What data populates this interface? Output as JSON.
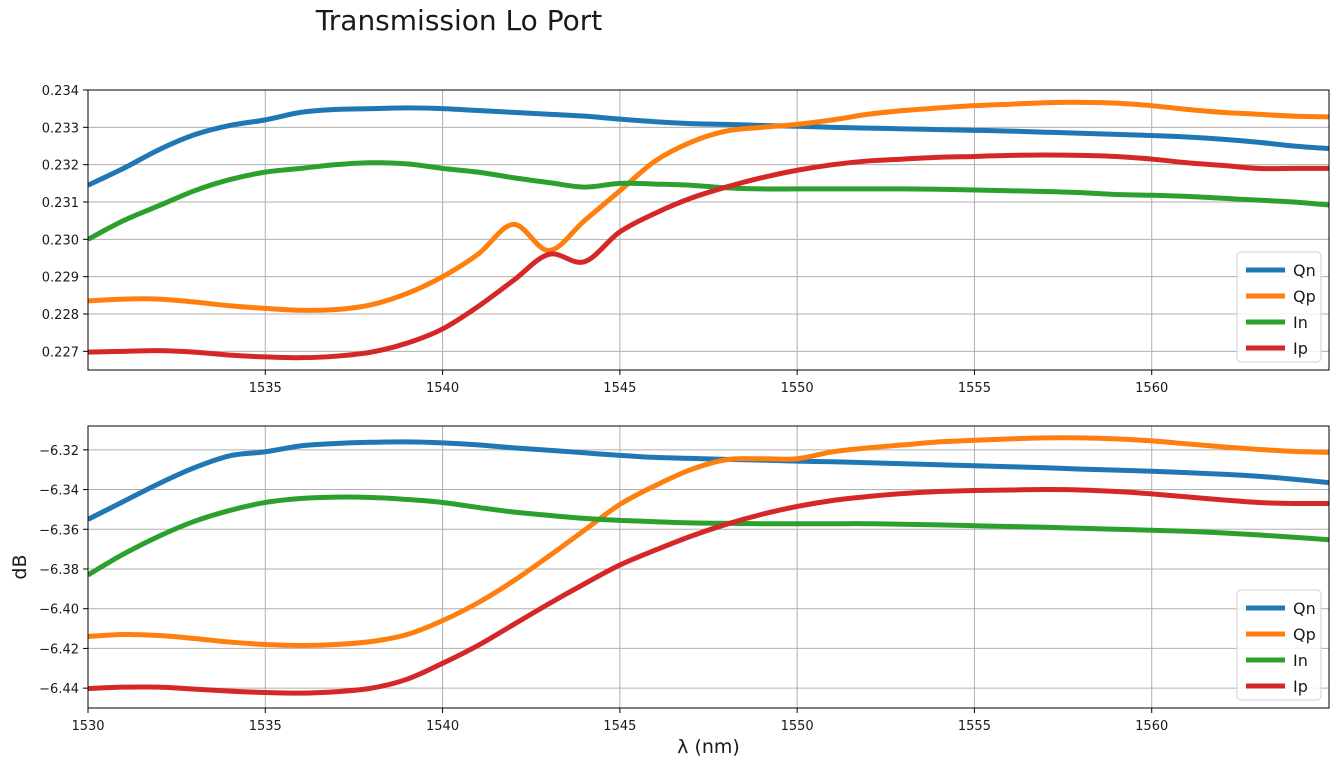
{
  "chart_data": {
    "title": "Transmission Lo Port",
    "panels": [
      {
        "type": "line",
        "ylabel": "",
        "xlabel": "",
        "xlim": [
          1530,
          1565
        ],
        "ylim": [
          0.2265,
          0.234
        ],
        "xticks": [
          1535,
          1540,
          1545,
          1550,
          1555,
          1560
        ],
        "yticks": [
          0.227,
          0.228,
          0.229,
          0.23,
          0.231,
          0.232,
          0.233,
          0.234
        ],
        "ytick_labels": [
          "0.227",
          "0.228",
          "0.229",
          "0.230",
          "0.231",
          "0.232",
          "0.233",
          "0.234"
        ],
        "grid": true,
        "legend": "lower-right",
        "x": [
          1530,
          1531,
          1532,
          1533,
          1534,
          1535,
          1536,
          1537,
          1538,
          1539,
          1540,
          1541,
          1542,
          1543,
          1544,
          1545,
          1546,
          1547,
          1548,
          1549,
          1550,
          1551,
          1552,
          1553,
          1554,
          1555,
          1556,
          1557,
          1558,
          1559,
          1560,
          1561,
          1562,
          1563,
          1564,
          1565
        ],
        "series": [
          {
            "name": "Qn",
            "color": "#1f77b4",
            "values": [
              0.23145,
              0.2319,
              0.2324,
              0.2328,
              0.23305,
              0.2332,
              0.2334,
              0.23348,
              0.2335,
              0.23352,
              0.2335,
              0.23345,
              0.2334,
              0.23335,
              0.2333,
              0.23322,
              0.23315,
              0.2331,
              0.23308,
              0.23305,
              0.23303,
              0.233,
              0.23298,
              0.23296,
              0.23294,
              0.23292,
              0.2329,
              0.23287,
              0.23284,
              0.23281,
              0.23278,
              0.23274,
              0.23268,
              0.2326,
              0.2325,
              0.23243
            ]
          },
          {
            "name": "Qp",
            "color": "#ff7f0e",
            "values": [
              0.22835,
              0.2284,
              0.2284,
              0.22832,
              0.22822,
              0.22815,
              0.2281,
              0.22812,
              0.22825,
              0.22855,
              0.229,
              0.2296,
              0.2304,
              0.2297,
              0.2305,
              0.2313,
              0.2321,
              0.2326,
              0.2329,
              0.233,
              0.23308,
              0.2332,
              0.23335,
              0.23345,
              0.23352,
              0.23358,
              0.23362,
              0.23366,
              0.23367,
              0.23365,
              0.23358,
              0.23348,
              0.2334,
              0.23335,
              0.2333,
              0.23328
            ]
          },
          {
            "name": "In",
            "color": "#2ca02c",
            "values": [
              0.23,
              0.2305,
              0.2309,
              0.2313,
              0.2316,
              0.2318,
              0.2319,
              0.232,
              0.23205,
              0.23202,
              0.2319,
              0.2318,
              0.23165,
              0.23152,
              0.2314,
              0.2315,
              0.23148,
              0.23145,
              0.23138,
              0.23135,
              0.23135,
              0.23135,
              0.23135,
              0.23135,
              0.23134,
              0.23132,
              0.2313,
              0.23128,
              0.23125,
              0.2312,
              0.23118,
              0.23115,
              0.2311,
              0.23105,
              0.231,
              0.23092
            ]
          },
          {
            "name": "Ip",
            "color": "#d62728",
            "values": [
              0.22698,
              0.227,
              0.22702,
              0.22698,
              0.2269,
              0.22685,
              0.22683,
              0.22687,
              0.22698,
              0.22722,
              0.2276,
              0.2282,
              0.2289,
              0.2296,
              0.2294,
              0.2302,
              0.2307,
              0.2311,
              0.2314,
              0.23165,
              0.23185,
              0.232,
              0.2321,
              0.23215,
              0.2322,
              0.23222,
              0.23225,
              0.23226,
              0.23225,
              0.23222,
              0.23215,
              0.23205,
              0.23198,
              0.2319,
              0.2319,
              0.2319
            ]
          }
        ]
      },
      {
        "type": "line",
        "ylabel": "dB",
        "xlabel": "λ (nm)",
        "xlim": [
          1530,
          1565
        ],
        "ylim": [
          -6.45,
          -6.308
        ],
        "xticks": [
          1530,
          1535,
          1540,
          1545,
          1550,
          1555,
          1560
        ],
        "yticks": [
          -6.44,
          -6.42,
          -6.4,
          -6.38,
          -6.36,
          -6.34,
          -6.32
        ],
        "ytick_labels": [
          "−6.44",
          "−6.42",
          "−6.40",
          "−6.38",
          "−6.36",
          "−6.34",
          "−6.32"
        ],
        "grid": true,
        "legend": "lower-right",
        "x": [
          1530,
          1531,
          1532,
          1533,
          1534,
          1535,
          1536,
          1537,
          1538,
          1539,
          1540,
          1541,
          1542,
          1543,
          1544,
          1545,
          1546,
          1547,
          1548,
          1549,
          1550,
          1551,
          1552,
          1553,
          1554,
          1555,
          1556,
          1557,
          1558,
          1559,
          1560,
          1561,
          1562,
          1563,
          1564,
          1565
        ],
        "series": [
          {
            "name": "Qn",
            "color": "#1f77b4",
            "values": [
              -6.355,
              -6.346,
              -6.337,
              -6.329,
              -6.323,
              -6.321,
              -6.318,
              -6.3168,
              -6.3162,
              -6.316,
              -6.3165,
              -6.3175,
              -6.319,
              -6.3202,
              -6.3215,
              -6.3228,
              -6.3238,
              -6.3243,
              -6.3248,
              -6.3252,
              -6.3257,
              -6.326,
              -6.3265,
              -6.327,
              -6.3275,
              -6.328,
              -6.3285,
              -6.329,
              -6.3297,
              -6.3302,
              -6.3308,
              -6.3315,
              -6.3323,
              -6.3333,
              -6.3348,
              -6.3365
            ]
          },
          {
            "name": "Qp",
            "color": "#ff7f0e",
            "values": [
              -6.414,
              -6.413,
              -6.4135,
              -6.415,
              -6.4168,
              -6.418,
              -6.4185,
              -6.418,
              -6.4165,
              -6.413,
              -6.406,
              -6.397,
              -6.386,
              -6.3735,
              -6.3605,
              -6.3475,
              -6.338,
              -6.33,
              -6.325,
              -6.3245,
              -6.3245,
              -6.321,
              -6.319,
              -6.3175,
              -6.316,
              -6.3152,
              -6.3145,
              -6.314,
              -6.314,
              -6.3145,
              -6.3155,
              -6.317,
              -6.3185,
              -6.3198,
              -6.3208,
              -6.3213
            ]
          },
          {
            "name": "In",
            "color": "#2ca02c",
            "values": [
              -6.383,
              -6.3725,
              -6.3635,
              -6.356,
              -6.3505,
              -6.3465,
              -6.3445,
              -6.3438,
              -6.344,
              -6.345,
              -6.3465,
              -6.349,
              -6.3513,
              -6.353,
              -6.3545,
              -6.3555,
              -6.3562,
              -6.3568,
              -6.357,
              -6.3572,
              -6.3572,
              -6.3572,
              -6.3572,
              -6.3575,
              -6.3578,
              -6.3582,
              -6.3586,
              -6.359,
              -6.3595,
              -6.36,
              -6.3605,
              -6.361,
              -6.3618,
              -6.3628,
              -6.364,
              -6.3653
            ]
          },
          {
            "name": "Ip",
            "color": "#d62728",
            "values": [
              -6.4402,
              -6.4395,
              -6.4395,
              -6.4405,
              -6.4415,
              -6.4422,
              -6.4425,
              -6.4418,
              -6.44,
              -6.4355,
              -6.4275,
              -6.4185,
              -6.408,
              -6.3975,
              -6.3875,
              -6.378,
              -6.3705,
              -6.3635,
              -6.3575,
              -6.3525,
              -6.3485,
              -6.3455,
              -6.3435,
              -6.342,
              -6.341,
              -6.3405,
              -6.3402,
              -6.34,
              -6.3402,
              -6.341,
              -6.3422,
              -6.3437,
              -6.3452,
              -6.3465,
              -6.347,
              -6.347
            ]
          }
        ]
      }
    ]
  }
}
